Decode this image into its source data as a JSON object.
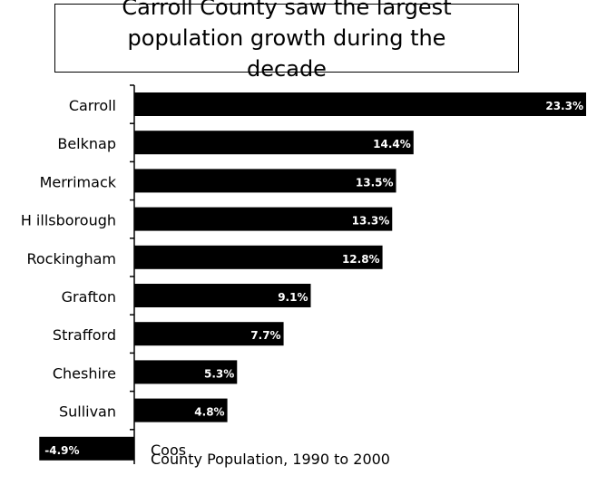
{
  "chart_data": {
    "type": "bar",
    "orientation": "horizontal",
    "title": "Carroll County saw the largest population growth during the decade",
    "caption": "County Population, 1990 to 2000",
    "categories": [
      "Carroll",
      "Belknap",
      "Merrimack",
      "H illsborough",
      "Rockingham",
      "Grafton",
      "Strafford",
      "Cheshire",
      "Sullivan",
      "Coos"
    ],
    "values": [
      23.3,
      14.4,
      13.5,
      13.3,
      12.8,
      9.1,
      7.7,
      5.3,
      4.8,
      -4.9
    ],
    "value_labels": [
      "23.3%",
      "14.4%",
      "13.5%",
      "13.3%",
      "12.8%",
      "9.1%",
      "7.7%",
      "5.3%",
      "4.8%",
      "-4.9%"
    ],
    "bar_color": "#000000",
    "xlim": [
      -5,
      23.3
    ]
  }
}
